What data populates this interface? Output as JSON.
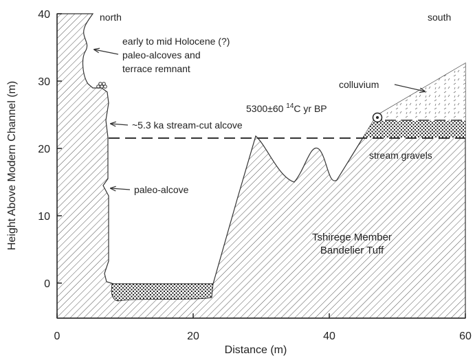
{
  "axes": {
    "xlabel": "Distance (m)",
    "ylabel": "Height Above Modern Channel (m)",
    "xlim": [
      0,
      60
    ],
    "ylim": [
      -5,
      40
    ],
    "xticks": [
      0,
      20,
      40,
      60
    ],
    "yticks": [
      0,
      10,
      20,
      30,
      40
    ]
  },
  "labels": {
    "north": "north",
    "south": "south",
    "holocene": [
      "early to mid Holocene (?)",
      "paleo-alcoves and",
      "terrace remnant"
    ],
    "stream_cut": "~5.3 ka stream-cut alcove",
    "paleo_alcove": "paleo-alcove",
    "colluvium": "colluvium",
    "date": {
      "prefix": "5300±60 ",
      "superscript": "14",
      "suffix": "C yr BP"
    },
    "stream_gravels": "stream gravels",
    "formation": [
      "Tshirege Member",
      "Bandelier Tuff"
    ]
  }
}
